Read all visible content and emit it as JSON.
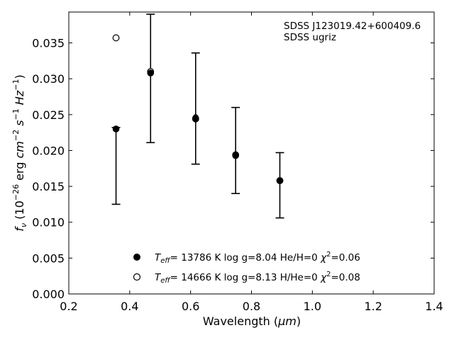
{
  "chart_data": {
    "type": "scatter",
    "xlabel_main": "Wavelength (",
    "xlabel_unit": "μm",
    "xlabel_close": ")",
    "ylabel": "fν (10⁻²⁶ erg cm⁻² s⁻¹ Hz⁻¹)",
    "xlim": [
      0.2,
      1.4
    ],
    "ylim": [
      0.0,
      0.0393
    ],
    "x_ticks": [
      0.2,
      0.4,
      0.6,
      0.8,
      1.0,
      1.2,
      1.4
    ],
    "x_tick_labels": [
      "0.2",
      "0.4",
      "0.6",
      "0.8",
      "1.0",
      "1.2",
      "1.4"
    ],
    "y_ticks": [
      0.0,
      0.005,
      0.01,
      0.015,
      0.02,
      0.025,
      0.03,
      0.035
    ],
    "y_tick_labels": [
      "0.000",
      "0.005",
      "0.010",
      "0.015",
      "0.020",
      "0.025",
      "0.030",
      "0.035"
    ],
    "annotations": [
      "SDSS J123019.42+600409.6",
      "SDSS ugriz"
    ],
    "observed": {
      "x": [
        0.3551,
        0.4686,
        0.6166,
        0.748,
        0.8932
      ],
      "y": [
        0.023,
        0.0311,
        0.0247,
        0.0194,
        0.0158
      ],
      "yerr_low": [
        0.0125,
        0.0211,
        0.0181,
        0.014,
        0.0106
      ],
      "yerr_high": [
        0.0232,
        0.039,
        0.0336,
        0.026,
        0.0197
      ]
    },
    "series": [
      {
        "name": "Teff= 13786 K  log g=8.04  He/H=0  χ²=0.06",
        "marker": "filled-circle",
        "x": [
          0.3551,
          0.4686,
          0.6166,
          0.748,
          0.8932
        ],
        "y": [
          0.023,
          0.0308,
          0.0245,
          0.0193,
          0.0158
        ]
      },
      {
        "name": "Teff= 14666 K  log g=8.13  H/He=0  χ²=0.08",
        "marker": "open-circle",
        "x": [
          0.3551,
          0.4686,
          0.6166,
          0.748,
          0.8932
        ],
        "y": [
          0.0357,
          0.031,
          0.0244,
          0.0194,
          0.0158
        ]
      }
    ],
    "legend_placement": "lower-center",
    "grid": false
  },
  "legend": {
    "entry1": {
      "t": "T",
      "sub": "eff",
      "rest1": "= 13786 K  log g=8.04  He/H=0  ",
      "chi": "χ",
      "sup": "2",
      "rest2": "=0.06"
    },
    "entry2": {
      "t": "T",
      "sub": "eff",
      "rest1": "= 14666 K  log g=8.13  H/He=0  ",
      "chi": "χ",
      "sup": "2",
      "rest2": "=0.08"
    }
  },
  "ylabel_parts": {
    "f": "f",
    "nu": "ν",
    "open": " (10",
    "e26": "−26",
    "erg": " erg ",
    "cm": "cm",
    "e2": "−2",
    "s": " s",
    "e1a": "−1",
    "hz": " Hz",
    "e1b": "−1",
    "close": ")"
  }
}
